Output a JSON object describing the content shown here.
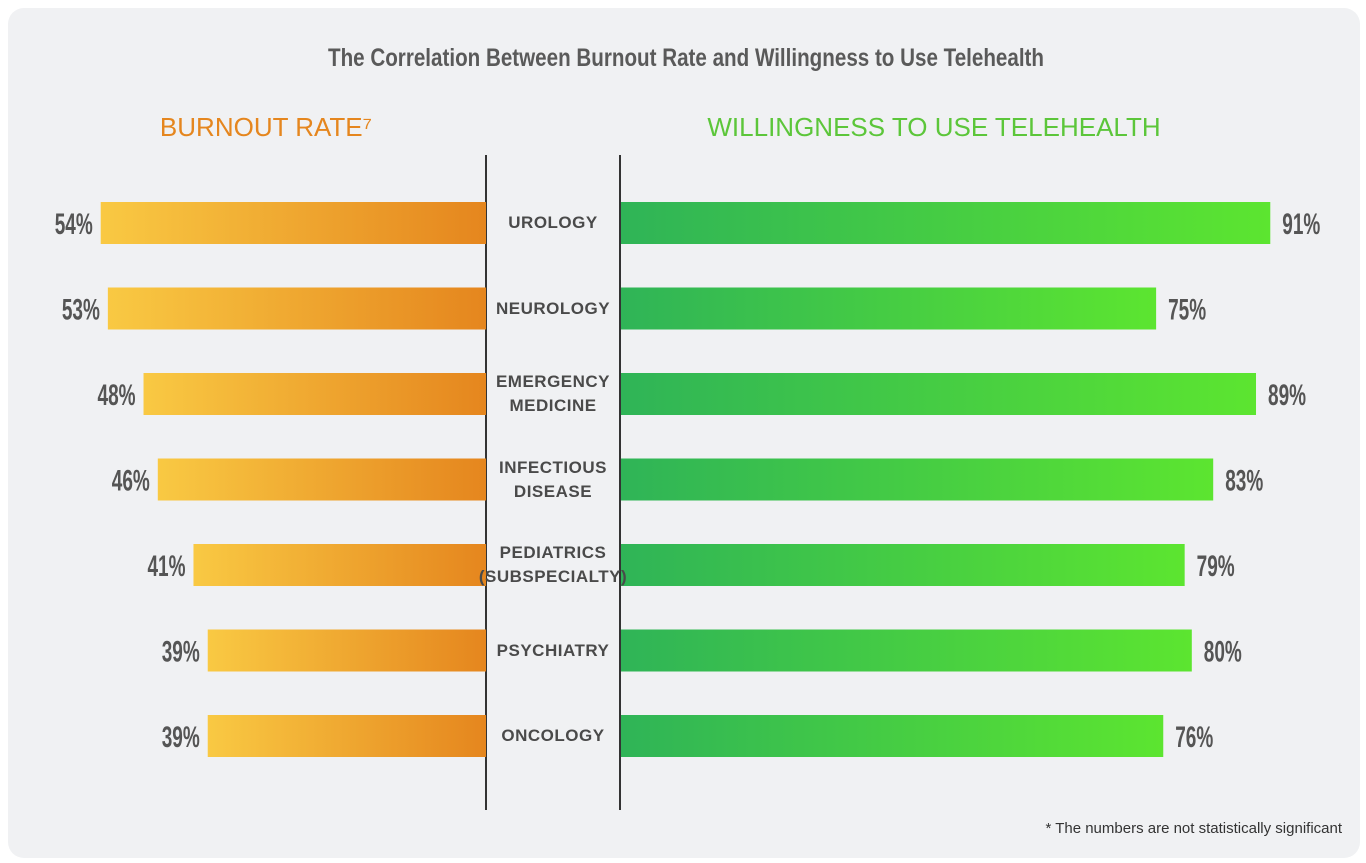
{
  "chart_data": {
    "type": "butterfly",
    "title": "The Correlation Between Burnout Rate and Willingness to Use Telehealth",
    "categories": [
      "UROLOGY",
      "NEUROLOGY",
      "EMERGENCY MEDICINE",
      "INFECTIOUS DISEASE",
      "PEDIATRICS (SUBSPECIALTY)",
      "PSYCHIATRY",
      "ONCOLOGY"
    ],
    "series": [
      {
        "name": "BURNOUT RATE⁷",
        "color": "#e5861e",
        "gradient": [
          "#f9c943",
          "#e5861e"
        ],
        "side": "left",
        "values": [
          54,
          53,
          48,
          46,
          41,
          39,
          39
        ],
        "value_labels": [
          "54%",
          "53%",
          "48%",
          "46%",
          "41%",
          "39%",
          "39%"
        ]
      },
      {
        "name": "WILLINGNESS TO USE TELEHEALTH",
        "color": "#5cc63a",
        "gradient": [
          "#2fb457",
          "#5ce530"
        ],
        "side": "right",
        "values": [
          91,
          75,
          89,
          83,
          79,
          80,
          76
        ],
        "value_labels": [
          "91%",
          "75%",
          "89%",
          "83%",
          "79%",
          "80%",
          "76%"
        ]
      }
    ],
    "footnote": "* The numbers are not statistically significant"
  }
}
